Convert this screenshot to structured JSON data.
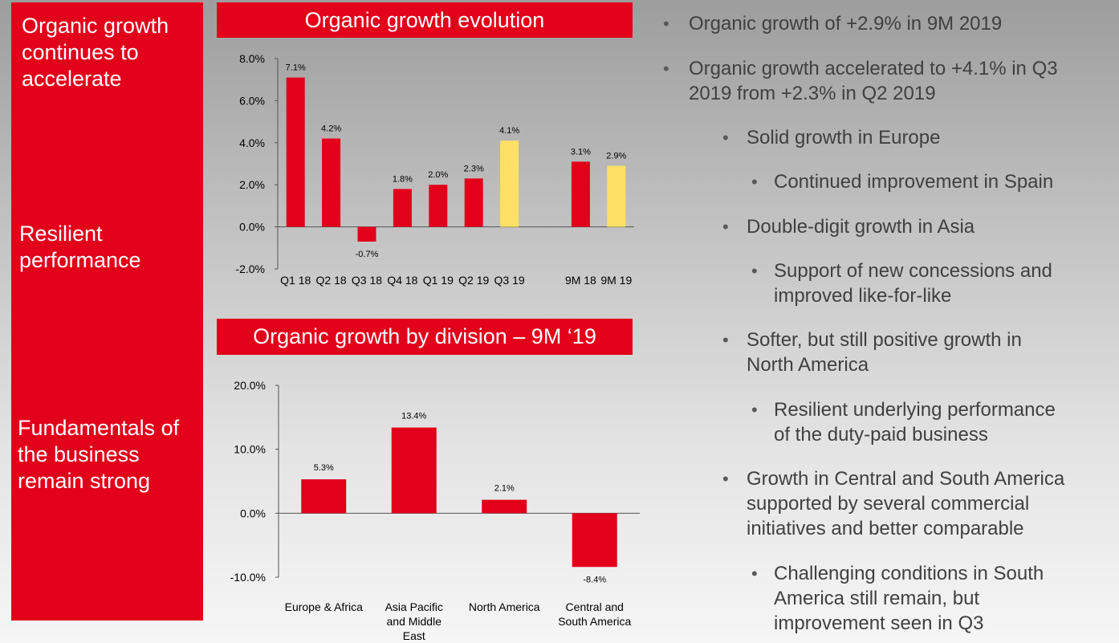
{
  "left_panel": {
    "sections": [
      "Organic growth\ncontinues to\naccelerate",
      "Resilient\nperformance",
      "Fundamentals of\nthe business\nremain strong"
    ]
  },
  "colors": {
    "accent_red": "#e2001a",
    "highlight_yellow": "#ffe066",
    "bullet_text": "#404040"
  },
  "bullets": [
    {
      "level": 1,
      "text": "Organic growth of +2.9% in 9M 2019"
    },
    {
      "level": 1,
      "text": "Organic growth accelerated to +4.1% in Q3\n2019 from +2.3% in Q2 2019"
    },
    {
      "level": 2,
      "text": "Solid growth in Europe"
    },
    {
      "level": 3,
      "text": "Continued improvement in Spain"
    },
    {
      "level": 2,
      "text": "Double-digit growth in Asia"
    },
    {
      "level": 3,
      "text": "Support of new concessions and\nimproved like-for-like"
    },
    {
      "level": 2,
      "text": "Softer, but still positive growth in\nNorth America"
    },
    {
      "level": 3,
      "text": "Resilient underlying performance\nof the duty-paid business"
    },
    {
      "level": 2,
      "text": "Growth in Central and South America\nsupported by several commercial\ninitiatives and better comparable"
    },
    {
      "level": 3,
      "text": "Challenging conditions in South\nAmerica still remain, but\nimprovement seen in Q3"
    }
  ],
  "chart_data": [
    {
      "type": "bar",
      "title": "Organic growth evolution",
      "categories": [
        "Q1 18",
        "Q2 18",
        "Q3 18",
        "Q4 18",
        "Q1 19",
        "Q2 19",
        "Q3 19",
        "9M 18",
        "9M 19"
      ],
      "values": [
        7.1,
        4.2,
        -0.7,
        1.8,
        2.0,
        2.3,
        4.1,
        3.1,
        2.9
      ],
      "data_labels": [
        "7.1%",
        "4.2%",
        "-0.7%",
        "1.8%",
        "2.0%",
        "2.3%",
        "4.1%",
        "3.1%",
        "2.9%"
      ],
      "highlight": [
        "Q3 19",
        "9M 19"
      ],
      "ylim": [
        -2.0,
        8.0
      ],
      "yticks": [
        8.0,
        6.0,
        4.0,
        2.0,
        0.0,
        -2.0
      ],
      "ytick_labels": [
        "8.0%",
        "6.0%",
        "4.0%",
        "2.0%",
        "0.0%",
        "-2.0%"
      ],
      "gap_before": "9M 18",
      "grid": false,
      "xlabel": "",
      "ylabel": ""
    },
    {
      "type": "bar",
      "title": "Organic growth by division – 9M ‘19",
      "categories": [
        "Europe & Africa",
        "Asia Pacific\nand Middle\nEast",
        "North America",
        "Central and\nSouth America"
      ],
      "values": [
        5.3,
        13.4,
        2.1,
        -8.4
      ],
      "data_labels": [
        "5.3%",
        "13.4%",
        "2.1%",
        "-8.4%"
      ],
      "ylim": [
        -10.0,
        20.0
      ],
      "yticks": [
        20.0,
        10.0,
        0.0,
        -10.0
      ],
      "ytick_labels": [
        "20.0%",
        "10.0%",
        "0.0%",
        "-10.0%"
      ],
      "grid": false,
      "xlabel": "",
      "ylabel": ""
    }
  ]
}
